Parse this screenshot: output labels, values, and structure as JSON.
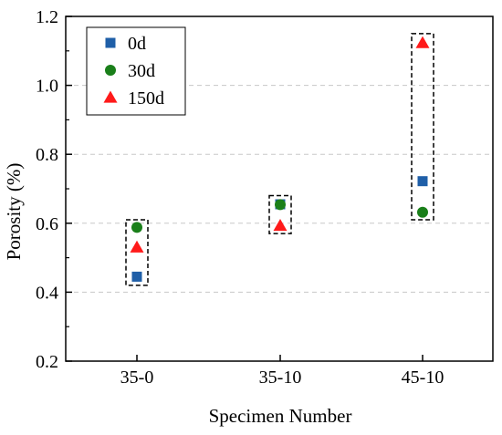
{
  "chart_data": {
    "type": "scatter",
    "title": "",
    "xlabel": "Specimen Number",
    "ylabel": "Porosity (%)",
    "categories": [
      "35-0",
      "35-10",
      "45-10"
    ],
    "ylim": [
      0.2,
      1.2
    ],
    "yticks": [
      "0.2",
      "0.4",
      "0.6",
      "0.8",
      "1.0",
      "1.2"
    ],
    "grid": "horizontal dashed",
    "legend_position": "top-left",
    "series": [
      {
        "name": "0d",
        "marker": "square",
        "color": "#1f5fa8",
        "values": [
          0.445,
          0.655,
          0.722
        ]
      },
      {
        "name": "30d",
        "marker": "circle",
        "color": "#1a7f1a",
        "values": [
          0.588,
          0.654,
          0.632
        ]
      },
      {
        "name": "150d",
        "marker": "triangle",
        "color": "#ff1a1a",
        "values": [
          0.53,
          0.593,
          1.123
        ]
      }
    ],
    "group_boxes": [
      {
        "category": "35-0",
        "ymin": 0.42,
        "ymax": 0.61
      },
      {
        "category": "35-10",
        "ymin": 0.57,
        "ymax": 0.68
      },
      {
        "category": "45-10",
        "ymin": 0.61,
        "ymax": 1.15
      }
    ]
  }
}
